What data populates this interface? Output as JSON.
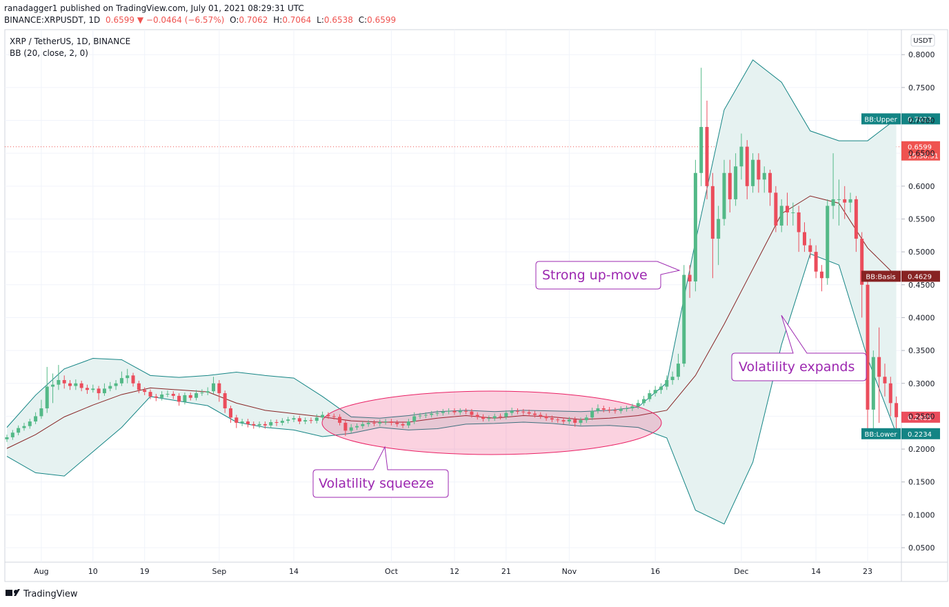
{
  "header": {
    "line1": "ranadagger1 published on TradingView.com, July 01, 2021 08:29:31 UTC",
    "symbol": "BINANCE:XRPUSDT, 1D",
    "change": "0.6599 ▼ −0.0464 (−6.57%)",
    "ohlc": [
      {
        "label": "O:",
        "value": "0.7062"
      },
      {
        "label": "H:",
        "value": "0.7064"
      },
      {
        "label": "L:",
        "value": "0.6538"
      },
      {
        "label": "C:",
        "value": "0.6599"
      }
    ]
  },
  "footer": {
    "brand": "TradingView"
  },
  "chart_data": {
    "type": "candlestick",
    "title": "XRP / TetherUS, 1D, BINANCE",
    "subtitle": "BB (20, close, 2, 0)",
    "currency": "USDT",
    "up_color": "#53b987",
    "down_color": "#eb4d5c",
    "grid": true,
    "ylim": [
      0.028,
      0.838
    ],
    "yticks": [
      {
        "value": 0.8,
        "label": "0.8000"
      },
      {
        "value": 0.75,
        "label": "0.7500"
      },
      {
        "value": 0.7,
        "label": "0.7000"
      },
      {
        "value": 0.65,
        "label": "0.6500"
      },
      {
        "value": 0.6,
        "label": "0.6000"
      },
      {
        "value": 0.55,
        "label": "0.5500"
      },
      {
        "value": 0.5,
        "label": "0.5000"
      },
      {
        "value": 0.45,
        "label": "0.4500"
      },
      {
        "value": 0.4,
        "label": "0.4000"
      },
      {
        "value": 0.35,
        "label": "0.3500"
      },
      {
        "value": 0.3,
        "label": "0.3000"
      },
      {
        "value": 0.25,
        "label": "0.2500"
      },
      {
        "value": 0.2,
        "label": "0.2000"
      },
      {
        "value": 0.15,
        "label": "0.1500"
      },
      {
        "value": 0.1,
        "label": "0.1000"
      },
      {
        "value": 0.05,
        "label": "0.0500"
      }
    ],
    "categories": [
      null,
      null,
      null,
      null,
      null,
      null,
      "Aug",
      null,
      null,
      null,
      null,
      null,
      null,
      null,
      null,
      "10",
      null,
      null,
      null,
      null,
      null,
      null,
      null,
      null,
      "19",
      null,
      null,
      null,
      null,
      null,
      null,
      null,
      null,
      null,
      null,
      null,
      null,
      "Sep",
      null,
      null,
      null,
      null,
      null,
      null,
      null,
      null,
      null,
      null,
      null,
      null,
      "14",
      null,
      null,
      null,
      null,
      null,
      null,
      null,
      null,
      null,
      null,
      null,
      null,
      null,
      null,
      null,
      null,
      "Oct",
      null,
      null,
      null,
      null,
      null,
      null,
      null,
      null,
      null,
      null,
      "12",
      null,
      null,
      null,
      null,
      null,
      null,
      null,
      null,
      "21",
      null,
      null,
      null,
      null,
      null,
      null,
      null,
      null,
      null,
      null,
      "Nov",
      null,
      null,
      null,
      null,
      null,
      null,
      null,
      null,
      null,
      null,
      null,
      null,
      null,
      null,
      "16",
      null,
      null,
      null,
      null,
      null,
      null,
      null,
      null,
      null,
      null,
      null,
      null,
      null,
      null,
      "Dec",
      null,
      null,
      null,
      null,
      null,
      null,
      null,
      null,
      null,
      null,
      null,
      null,
      "14",
      null,
      null,
      null,
      null,
      null,
      null,
      null,
      null,
      "23",
      null,
      null,
      null,
      null,
      null
    ],
    "ohlc": [
      [
        0.215,
        0.222,
        0.211,
        0.218
      ],
      [
        0.218,
        0.229,
        0.214,
        0.225
      ],
      [
        0.225,
        0.236,
        0.221,
        0.232
      ],
      [
        0.232,
        0.24,
        0.228,
        0.235
      ],
      [
        0.235,
        0.246,
        0.231,
        0.242
      ],
      [
        0.242,
        0.256,
        0.238,
        0.25
      ],
      [
        0.25,
        0.275,
        0.246,
        0.262
      ],
      [
        0.262,
        0.325,
        0.255,
        0.295
      ],
      [
        0.295,
        0.315,
        0.27,
        0.298
      ],
      [
        0.298,
        0.328,
        0.29,
        0.305
      ],
      [
        0.305,
        0.312,
        0.292,
        0.3
      ],
      [
        0.3,
        0.305,
        0.29,
        0.296
      ],
      [
        0.296,
        0.306,
        0.29,
        0.3
      ],
      [
        0.3,
        0.304,
        0.288,
        0.293
      ],
      [
        0.293,
        0.298,
        0.284,
        0.29
      ],
      [
        0.29,
        0.298,
        0.286,
        0.292
      ],
      [
        0.292,
        0.296,
        0.275,
        0.285
      ],
      [
        0.285,
        0.3,
        0.281,
        0.292
      ],
      [
        0.292,
        0.302,
        0.288,
        0.296
      ],
      [
        0.296,
        0.305,
        0.29,
        0.3
      ],
      [
        0.3,
        0.318,
        0.296,
        0.308
      ],
      [
        0.308,
        0.322,
        0.3,
        0.312
      ],
      [
        0.312,
        0.316,
        0.295,
        0.3
      ],
      [
        0.3,
        0.304,
        0.285,
        0.29
      ],
      [
        0.29,
        0.294,
        0.282,
        0.287
      ],
      [
        0.287,
        0.291,
        0.276,
        0.28
      ],
      [
        0.28,
        0.284,
        0.273,
        0.278
      ],
      [
        0.278,
        0.288,
        0.274,
        0.283
      ],
      [
        0.283,
        0.289,
        0.279,
        0.284
      ],
      [
        0.284,
        0.288,
        0.276,
        0.281
      ],
      [
        0.281,
        0.285,
        0.266,
        0.272
      ],
      [
        0.272,
        0.286,
        0.268,
        0.282
      ],
      [
        0.282,
        0.286,
        0.274,
        0.278
      ],
      [
        0.278,
        0.29,
        0.274,
        0.285
      ],
      [
        0.285,
        0.291,
        0.281,
        0.286
      ],
      [
        0.286,
        0.294,
        0.282,
        0.288
      ],
      [
        0.288,
        0.31,
        0.284,
        0.3
      ],
      [
        0.3,
        0.305,
        0.272,
        0.285
      ],
      [
        0.285,
        0.289,
        0.255,
        0.262
      ],
      [
        0.262,
        0.266,
        0.24,
        0.248
      ],
      [
        0.248,
        0.252,
        0.232,
        0.24
      ],
      [
        0.24,
        0.246,
        0.235,
        0.242
      ],
      [
        0.242,
        0.246,
        0.233,
        0.238
      ],
      [
        0.238,
        0.242,
        0.231,
        0.236
      ],
      [
        0.236,
        0.242,
        0.232,
        0.238
      ],
      [
        0.238,
        0.242,
        0.231,
        0.236
      ],
      [
        0.236,
        0.245,
        0.232,
        0.241
      ],
      [
        0.241,
        0.245,
        0.235,
        0.24
      ],
      [
        0.24,
        0.247,
        0.236,
        0.243
      ],
      [
        0.243,
        0.249,
        0.239,
        0.245
      ],
      [
        0.245,
        0.251,
        0.241,
        0.247
      ],
      [
        0.247,
        0.251,
        0.238,
        0.242
      ],
      [
        0.242,
        0.248,
        0.238,
        0.244
      ],
      [
        0.244,
        0.248,
        0.239,
        0.243
      ],
      [
        0.243,
        0.253,
        0.239,
        0.248
      ],
      [
        0.248,
        0.257,
        0.244,
        0.252
      ],
      [
        0.252,
        0.256,
        0.246,
        0.25
      ],
      [
        0.25,
        0.254,
        0.245,
        0.249
      ],
      [
        0.249,
        0.253,
        0.236,
        0.24
      ],
      [
        0.24,
        0.244,
        0.22,
        0.228
      ],
      [
        0.228,
        0.238,
        0.224,
        0.233
      ],
      [
        0.233,
        0.239,
        0.229,
        0.235
      ],
      [
        0.235,
        0.242,
        0.231,
        0.238
      ],
      [
        0.238,
        0.244,
        0.234,
        0.24
      ],
      [
        0.24,
        0.244,
        0.235,
        0.239
      ],
      [
        0.239,
        0.245,
        0.235,
        0.241
      ],
      [
        0.241,
        0.246,
        0.237,
        0.242
      ],
      [
        0.242,
        0.246,
        0.236,
        0.24
      ],
      [
        0.24,
        0.244,
        0.234,
        0.238
      ],
      [
        0.238,
        0.242,
        0.232,
        0.236
      ],
      [
        0.236,
        0.246,
        0.232,
        0.242
      ],
      [
        0.242,
        0.256,
        0.238,
        0.25
      ],
      [
        0.25,
        0.255,
        0.246,
        0.251
      ],
      [
        0.251,
        0.256,
        0.247,
        0.252
      ],
      [
        0.252,
        0.258,
        0.248,
        0.254
      ],
      [
        0.254,
        0.259,
        0.25,
        0.255
      ],
      [
        0.255,
        0.261,
        0.251,
        0.257
      ],
      [
        0.257,
        0.262,
        0.253,
        0.258
      ],
      [
        0.258,
        0.262,
        0.252,
        0.256
      ],
      [
        0.256,
        0.262,
        0.252,
        0.258
      ],
      [
        0.258,
        0.262,
        0.253,
        0.257
      ],
      [
        0.257,
        0.261,
        0.248,
        0.252
      ],
      [
        0.252,
        0.256,
        0.245,
        0.249
      ],
      [
        0.249,
        0.253,
        0.242,
        0.246
      ],
      [
        0.246,
        0.251,
        0.242,
        0.247
      ],
      [
        0.247,
        0.254,
        0.243,
        0.25
      ],
      [
        0.25,
        0.254,
        0.245,
        0.249
      ],
      [
        0.249,
        0.259,
        0.245,
        0.255
      ],
      [
        0.255,
        0.263,
        0.251,
        0.258
      ],
      [
        0.258,
        0.262,
        0.253,
        0.257
      ],
      [
        0.257,
        0.261,
        0.252,
        0.256
      ],
      [
        0.256,
        0.26,
        0.25,
        0.254
      ],
      [
        0.254,
        0.258,
        0.248,
        0.252
      ],
      [
        0.252,
        0.256,
        0.246,
        0.25
      ],
      [
        0.25,
        0.254,
        0.243,
        0.247
      ],
      [
        0.247,
        0.251,
        0.241,
        0.245
      ],
      [
        0.245,
        0.249,
        0.24,
        0.244
      ],
      [
        0.244,
        0.248,
        0.238,
        0.242
      ],
      [
        0.242,
        0.249,
        0.238,
        0.245
      ],
      [
        0.245,
        0.249,
        0.234,
        0.24
      ],
      [
        0.24,
        0.248,
        0.236,
        0.244
      ],
      [
        0.244,
        0.252,
        0.24,
        0.248
      ],
      [
        0.248,
        0.263,
        0.244,
        0.258
      ],
      [
        0.258,
        0.268,
        0.254,
        0.262
      ],
      [
        0.262,
        0.266,
        0.256,
        0.26
      ],
      [
        0.26,
        0.264,
        0.255,
        0.259
      ],
      [
        0.259,
        0.263,
        0.254,
        0.258
      ],
      [
        0.258,
        0.265,
        0.254,
        0.261
      ],
      [
        0.261,
        0.266,
        0.257,
        0.262
      ],
      [
        0.262,
        0.269,
        0.258,
        0.265
      ],
      [
        0.265,
        0.275,
        0.261,
        0.27
      ],
      [
        0.27,
        0.281,
        0.266,
        0.276
      ],
      [
        0.276,
        0.29,
        0.272,
        0.285
      ],
      [
        0.285,
        0.296,
        0.28,
        0.29
      ],
      [
        0.29,
        0.3,
        0.284,
        0.295
      ],
      [
        0.295,
        0.312,
        0.29,
        0.305
      ],
      [
        0.305,
        0.318,
        0.298,
        0.31
      ],
      [
        0.31,
        0.345,
        0.305,
        0.33
      ],
      [
        0.33,
        0.48,
        0.325,
        0.465
      ],
      [
        0.465,
        0.48,
        0.43,
        0.455
      ],
      [
        0.455,
        0.64,
        0.44,
        0.62
      ],
      [
        0.62,
        0.78,
        0.6,
        0.69
      ],
      [
        0.69,
        0.73,
        0.58,
        0.6
      ],
      [
        0.6,
        0.62,
        0.46,
        0.52
      ],
      [
        0.52,
        0.57,
        0.48,
        0.55
      ],
      [
        0.55,
        0.64,
        0.54,
        0.62
      ],
      [
        0.62,
        0.64,
        0.56,
        0.58
      ],
      [
        0.58,
        0.65,
        0.57,
        0.63
      ],
      [
        0.63,
        0.68,
        0.61,
        0.66
      ],
      [
        0.66,
        0.67,
        0.58,
        0.6
      ],
      [
        0.6,
        0.65,
        0.59,
        0.64
      ],
      [
        0.64,
        0.65,
        0.59,
        0.61
      ],
      [
        0.61,
        0.63,
        0.59,
        0.62
      ],
      [
        0.62,
        0.625,
        0.57,
        0.59
      ],
      [
        0.59,
        0.6,
        0.53,
        0.54
      ],
      [
        0.54,
        0.58,
        0.53,
        0.57
      ],
      [
        0.57,
        0.59,
        0.54,
        0.56
      ],
      [
        0.56,
        0.575,
        0.54,
        0.56
      ],
      [
        0.56,
        0.57,
        0.5,
        0.53
      ],
      [
        0.53,
        0.545,
        0.5,
        0.51
      ],
      [
        0.51,
        0.52,
        0.49,
        0.5
      ],
      [
        0.5,
        0.51,
        0.46,
        0.47
      ],
      [
        0.47,
        0.48,
        0.44,
        0.46
      ],
      [
        0.46,
        0.58,
        0.45,
        0.57
      ],
      [
        0.57,
        0.65,
        0.55,
        0.58
      ],
      [
        0.58,
        0.61,
        0.54,
        0.58
      ],
      [
        0.58,
        0.6,
        0.55,
        0.575
      ],
      [
        0.575,
        0.59,
        0.56,
        0.58
      ],
      [
        0.58,
        0.585,
        0.5,
        0.52
      ],
      [
        0.52,
        0.53,
        0.4,
        0.45
      ],
      [
        0.45,
        0.46,
        0.23,
        0.26
      ],
      [
        0.26,
        0.35,
        0.23,
        0.34
      ],
      [
        0.34,
        0.385,
        0.24,
        0.31
      ],
      [
        0.31,
        0.33,
        0.28,
        0.3
      ],
      [
        0.3,
        0.31,
        0.25,
        0.27
      ],
      [
        0.27,
        0.28,
        0.23,
        0.2485
      ]
    ],
    "bands": {
      "x": [
        0,
        5,
        10,
        15,
        20,
        25,
        30,
        35,
        40,
        45,
        50,
        55,
        60,
        65,
        70,
        75,
        80,
        85,
        90,
        95,
        100,
        105,
        110,
        115,
        120,
        125,
        130,
        135,
        140,
        145,
        150,
        155
      ],
      "fill": "#e6f2f1",
      "series": [
        {
          "name": "BB:Upper",
          "color": "#138484",
          "values": [
            0.233,
            0.282,
            0.322,
            0.338,
            0.336,
            0.312,
            0.309,
            0.312,
            0.317,
            0.312,
            0.308,
            0.28,
            0.249,
            0.247,
            0.251,
            0.257,
            0.259,
            0.257,
            0.259,
            0.258,
            0.257,
            0.259,
            0.264,
            0.301,
            0.516,
            0.716,
            0.792,
            0.758,
            0.684,
            0.669,
            0.669,
            0.7023
          ]
        },
        {
          "name": "BB:Basis",
          "color": "#872323",
          "values": [
            0.201,
            0.222,
            0.249,
            0.267,
            0.283,
            0.293,
            0.29,
            0.287,
            0.27,
            0.259,
            0.254,
            0.249,
            0.243,
            0.241,
            0.241,
            0.247,
            0.251,
            0.247,
            0.251,
            0.249,
            0.245,
            0.247,
            0.251,
            0.259,
            0.312,
            0.39,
            0.474,
            0.558,
            0.585,
            0.574,
            0.506,
            0.4629
          ]
        },
        {
          "name": "BB:Lower",
          "color": "#138484",
          "values": [
            0.189,
            0.164,
            0.159,
            0.196,
            0.233,
            0.28,
            0.273,
            0.266,
            0.241,
            0.233,
            0.229,
            0.219,
            0.224,
            0.233,
            0.229,
            0.231,
            0.238,
            0.239,
            0.241,
            0.239,
            0.235,
            0.236,
            0.233,
            0.217,
            0.107,
            0.086,
            0.18,
            0.359,
            0.497,
            0.48,
            0.338,
            0.2234
          ]
        }
      ]
    },
    "last_price": {
      "value": 0.6599,
      "time": "15:30:31",
      "color": "#ef5350"
    },
    "annotations": [
      "Strong up-move",
      "Volatility squeeze",
      "Volatility expands"
    ]
  }
}
